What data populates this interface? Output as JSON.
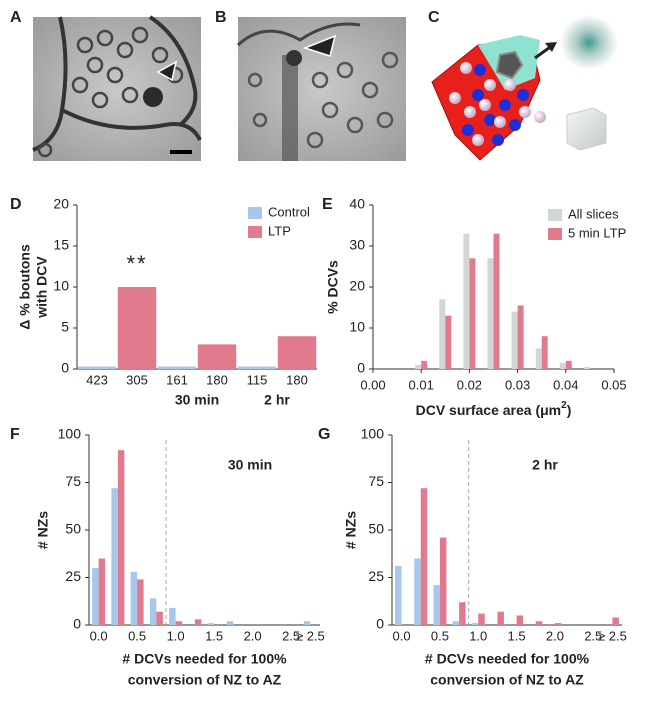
{
  "panel_labels": [
    "A",
    "B",
    "C",
    "D",
    "E",
    "F",
    "G"
  ],
  "chart_data": [
    {
      "type": "bar",
      "categories": [
        "423",
        "305",
        "161",
        "180",
        "115",
        "180"
      ],
      "series": [
        {
          "name": "Control",
          "color": "#a7c8ec",
          "values": [
            0.3,
            null,
            0.3,
            null,
            0.3,
            null
          ]
        },
        {
          "name": "LTP",
          "color": "#e27a8e",
          "values": [
            null,
            10,
            null,
            3,
            null,
            4
          ]
        }
      ],
      "ylim": [
        0,
        20
      ],
      "yticks": [
        0,
        5,
        10,
        15,
        20
      ],
      "y_label": [
        "Δ % boutons",
        "with DCV"
      ],
      "annotations": [
        "**",
        "30 min",
        "2 hr"
      ],
      "legend": "upper right"
    },
    {
      "type": "bar",
      "x": [
        0.01,
        0.015,
        0.02,
        0.025,
        0.03,
        0.035,
        0.04,
        0.045
      ],
      "series": [
        {
          "name": "All slices",
          "color": "#d3d6d6",
          "values": [
            1,
            17,
            33,
            27,
            14,
            5,
            1.5,
            0.5
          ]
        },
        {
          "name": "5 min LTP",
          "color": "#e27a8e",
          "values": [
            2,
            13,
            27,
            33,
            15.5,
            8,
            2,
            0
          ]
        }
      ],
      "xlim": [
        0,
        0.05
      ],
      "xticks": [
        {
          "value": 0,
          "label": "0.00"
        },
        {
          "value": 0.01,
          "label": "0.01"
        },
        {
          "value": 0.02,
          "label": "0.02"
        },
        {
          "value": 0.03,
          "label": "0.03"
        },
        {
          "value": 0.04,
          "label": "0.04"
        },
        {
          "value": 0.05,
          "label": "0.05"
        }
      ],
      "ylim": [
        0,
        40
      ],
      "yticks": [
        0,
        10,
        20,
        30,
        40
      ],
      "y_label": [
        "% DCVs"
      ],
      "x_label": {
        "text": "DCV surface area (μm",
        "superscript": "2",
        "close": ")"
      },
      "legend": "upper right"
    },
    {
      "type": "bar",
      "categories": [
        "0.0",
        null,
        "0.5",
        null,
        "1.0",
        null,
        "1.5",
        null,
        "2.0",
        null,
        "2.5",
        "≥ 2.5"
      ],
      "series": [
        {
          "name": "Control",
          "color": "#a7c8ec",
          "values": [
            30,
            72,
            28,
            14,
            9,
            0,
            1,
            2,
            0,
            0,
            0,
            2
          ]
        },
        {
          "name": "LTP",
          "color": "#e27a8e",
          "values": [
            35,
            92,
            24,
            7,
            2,
            3,
            0,
            0,
            0,
            0,
            0,
            0
          ]
        }
      ],
      "ylim": [
        0,
        100
      ],
      "yticks": [
        0,
        25,
        50,
        75,
        100
      ],
      "y_label": [
        "# NZs"
      ],
      "x_label": [
        "# DCVs needed for 100%",
        "conversion of NZ to AZ"
      ],
      "annotations": [
        "30 min"
      ]
    },
    {
      "type": "bar",
      "categories": [
        "0.0",
        null,
        "0.5",
        null,
        "1.0",
        null,
        "1.5",
        null,
        "2.0",
        null,
        "2.5",
        "≥ 2.5"
      ],
      "series": [
        {
          "name": "Control",
          "color": "#a7c8ec",
          "values": [
            31,
            35,
            21,
            2,
            1,
            0,
            0,
            0,
            0,
            0,
            0,
            0
          ]
        },
        {
          "name": "LTP",
          "color": "#e27a8e",
          "values": [
            0,
            72,
            46,
            12,
            6,
            7,
            5,
            2,
            1,
            0,
            0,
            4
          ]
        }
      ],
      "ylim": [
        0,
        100
      ],
      "yticks": [
        0,
        25,
        50,
        75,
        100
      ],
      "y_label": [
        "# NZs"
      ],
      "x_label": [
        "# DCVs needed for 100%",
        "conversion of NZ to AZ"
      ],
      "annotations": [
        "2 hr"
      ]
    }
  ]
}
